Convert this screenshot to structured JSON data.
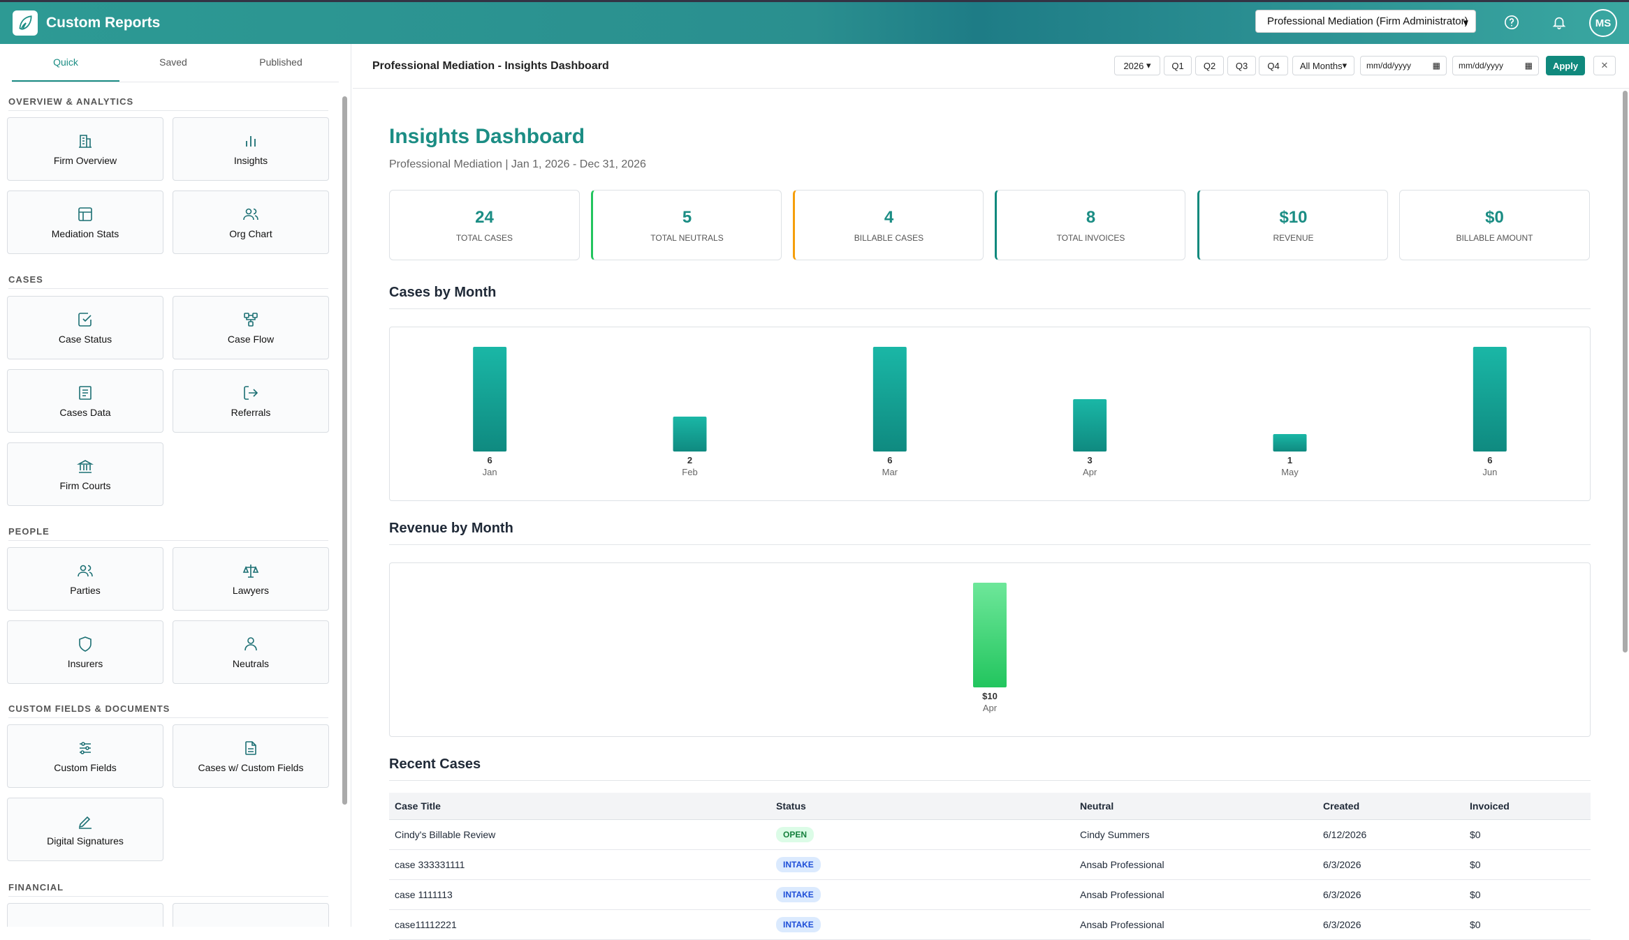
{
  "app": {
    "title": "Custom Reports",
    "firm": "Professional Mediation (Firm Administrator)",
    "user_initials": "MS"
  },
  "sidebar": {
    "tabs": [
      "Quick",
      "Saved",
      "Published"
    ],
    "sections": [
      {
        "label": "OVERVIEW & ANALYTICS",
        "items": [
          {
            "label": "Firm Overview",
            "icon": "building-icon"
          },
          {
            "label": "Insights",
            "icon": "bar-chart-icon"
          },
          {
            "label": "Mediation Stats",
            "icon": "layout-icon"
          },
          {
            "label": "Org Chart",
            "icon": "users-icon"
          }
        ]
      },
      {
        "label": "CASES",
        "items": [
          {
            "label": "Case Status",
            "icon": "check-square-icon"
          },
          {
            "label": "Case Flow",
            "icon": "flow-icon"
          },
          {
            "label": "Cases Data",
            "icon": "document-icon"
          },
          {
            "label": "Referrals",
            "icon": "logout-icon"
          },
          {
            "label": "Firm Courts",
            "icon": "courthouse-icon"
          }
        ]
      },
      {
        "label": "PEOPLE",
        "items": [
          {
            "label": "Parties",
            "icon": "users-icon"
          },
          {
            "label": "Lawyers",
            "icon": "scales-icon"
          },
          {
            "label": "Insurers",
            "icon": "shield-icon"
          },
          {
            "label": "Neutrals",
            "icon": "user-icon"
          }
        ]
      },
      {
        "label": "CUSTOM FIELDS & DOCUMENTS",
        "items": [
          {
            "label": "Custom Fields",
            "icon": "sliders-icon"
          },
          {
            "label": "Cases w/ Custom Fields",
            "icon": "file-icon"
          },
          {
            "label": "Digital Signatures",
            "icon": "signature-icon"
          }
        ]
      },
      {
        "label": "FINANCIAL",
        "items": []
      }
    ]
  },
  "toolbar": {
    "title": "Professional Mediation - Insights Dashboard",
    "year": "2026",
    "quarters": [
      "Q1",
      "Q2",
      "Q3",
      "Q4"
    ],
    "months": "All Months",
    "date_placeholder": "mm/dd/yyyy",
    "apply": "Apply"
  },
  "dashboard": {
    "title": "Insights Dashboard",
    "subtitle": "Professional Mediation | Jan 1, 2026 - Dec 31, 2026",
    "stats": [
      {
        "value": "24",
        "label": "Total Cases",
        "accent": ""
      },
      {
        "value": "5",
        "label": "Total Neutrals",
        "accent": "#22c55e"
      },
      {
        "value": "4",
        "label": "Billable Cases",
        "accent": "#f59e0b"
      },
      {
        "value": "8",
        "label": "Total Invoices",
        "accent": "#10897d"
      },
      {
        "value": "$10",
        "label": "Revenue",
        "accent": "#10897d"
      },
      {
        "value": "$0",
        "label": "Billable Amount",
        "accent": ""
      }
    ],
    "cases_heading": "Cases by Month",
    "revenue_heading": "Revenue by Month",
    "recent_heading": "Recent Cases"
  },
  "chart_data": [
    {
      "type": "bar",
      "categories": [
        "Jan",
        "Feb",
        "Mar",
        "Apr",
        "May",
        "Jun"
      ],
      "values": [
        6,
        2,
        6,
        3,
        1,
        6
      ],
      "value_labels": [
        "6",
        "2",
        "6",
        "3",
        "1",
        "6"
      ]
    },
    {
      "type": "bar",
      "categories": [
        "Apr"
      ],
      "values": [
        10
      ],
      "value_labels": [
        "$10"
      ]
    }
  ],
  "recent": {
    "columns": [
      "Case Title",
      "Status",
      "Neutral",
      "Created",
      "Invoiced"
    ],
    "rows": [
      {
        "title": "Cindy's Billable Review",
        "status": "OPEN",
        "neutral": "Cindy Summers",
        "created": "6/12/2026",
        "invoiced": "$0"
      },
      {
        "title": "case 333331111",
        "status": "INTAKE",
        "neutral": "Ansab Professional",
        "created": "6/3/2026",
        "invoiced": "$0"
      },
      {
        "title": "case 1111113",
        "status": "INTAKE",
        "neutral": "Ansab Professional",
        "created": "6/3/2026",
        "invoiced": "$0"
      },
      {
        "title": "case11112221",
        "status": "INTAKE",
        "neutral": "Ansab Professional",
        "created": "6/3/2026",
        "invoiced": "$0"
      }
    ]
  }
}
